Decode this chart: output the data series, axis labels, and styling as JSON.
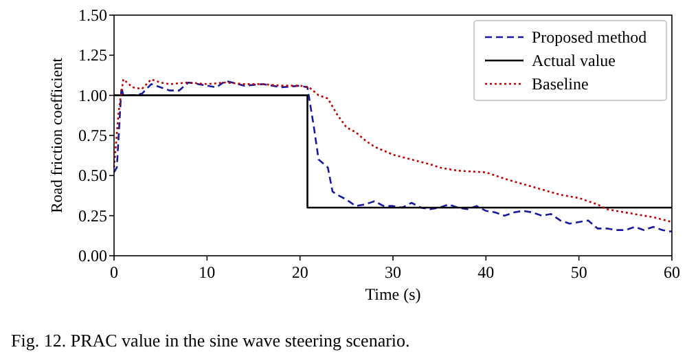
{
  "chart_data": {
    "type": "line",
    "xlabel": "Time (s)",
    "ylabel": "Road friction coefficient",
    "annotations": [
      "Fig. 12.  PRAC value in the sine wave steering scenario."
    ],
    "xlim": [
      0,
      60
    ],
    "ylim": [
      0,
      1.5
    ],
    "xticks": [
      0,
      10,
      20,
      30,
      40,
      50,
      60
    ],
    "yticks": [
      {
        "value": 0,
        "label": "0.00"
      },
      {
        "value": 0.25,
        "label": "0.25"
      },
      {
        "value": 0.5,
        "label": "0.50"
      },
      {
        "value": 0.75,
        "label": "0.75"
      },
      {
        "value": 1,
        "label": "1.00"
      },
      {
        "value": 1.25,
        "label": "1.25"
      },
      {
        "value": 1.5,
        "label": "1.50"
      }
    ],
    "grid": false,
    "legend": "top right",
    "marker": "none",
    "series": [
      {
        "name": "Proposed method",
        "color": "#1a1aa0",
        "line_style": "dashed",
        "x": [
          0,
          0.3,
          0.8,
          1,
          2,
          3,
          4,
          5,
          6,
          7,
          8,
          10,
          11,
          12,
          14,
          16,
          18,
          20,
          20.8,
          21.5,
          22,
          23,
          23.5,
          24,
          25,
          26,
          27,
          28,
          29,
          30,
          31,
          32,
          33,
          34,
          35,
          36,
          37,
          38,
          39,
          40,
          41,
          42,
          43,
          44,
          45,
          46,
          47,
          48,
          49,
          50,
          51,
          52,
          53,
          54,
          55,
          56,
          57,
          58,
          59,
          60
        ],
        "values": [
          0.52,
          0.55,
          1.05,
          1,
          1,
          1.01,
          1.07,
          1.05,
          1.03,
          1.03,
          1.08,
          1.06,
          1.05,
          1.09,
          1.06,
          1.07,
          1.05,
          1.06,
          1.05,
          0.8,
          0.6,
          0.55,
          0.4,
          0.38,
          0.35,
          0.31,
          0.32,
          0.34,
          0.31,
          0.31,
          0.3,
          0.33,
          0.3,
          0.29,
          0.3,
          0.32,
          0.3,
          0.29,
          0.31,
          0.28,
          0.27,
          0.25,
          0.27,
          0.28,
          0.27,
          0.25,
          0.26,
          0.22,
          0.2,
          0.21,
          0.22,
          0.17,
          0.17,
          0.16,
          0.16,
          0.18,
          0.16,
          0.18,
          0.16,
          0.15
        ]
      },
      {
        "name": "Actual value",
        "color": "#000000",
        "line_style": "solid",
        "x": [
          0,
          20.8,
          20.8,
          60
        ],
        "values": [
          1,
          1,
          0.3,
          0.3
        ]
      },
      {
        "name": "Baseline",
        "color": "#c00000",
        "line_style": "dotted",
        "x": [
          0,
          0.5,
          1,
          2,
          3,
          4,
          5,
          6,
          8,
          10,
          12,
          14,
          16,
          18,
          20,
          21,
          22,
          23,
          24,
          25,
          26,
          27,
          28,
          30,
          32,
          34,
          35,
          37,
          40,
          42,
          45,
          48,
          50,
          52,
          53,
          55,
          58,
          60
        ],
        "values": [
          0.55,
          0.9,
          1.1,
          1.05,
          1.04,
          1.1,
          1.08,
          1.07,
          1.08,
          1.07,
          1.08,
          1.07,
          1.07,
          1.06,
          1.06,
          1.05,
          1,
          0.98,
          0.88,
          0.8,
          0.77,
          0.72,
          0.68,
          0.63,
          0.6,
          0.57,
          0.55,
          0.53,
          0.52,
          0.48,
          0.43,
          0.38,
          0.36,
          0.32,
          0.29,
          0.27,
          0.24,
          0.21
        ]
      }
    ]
  }
}
